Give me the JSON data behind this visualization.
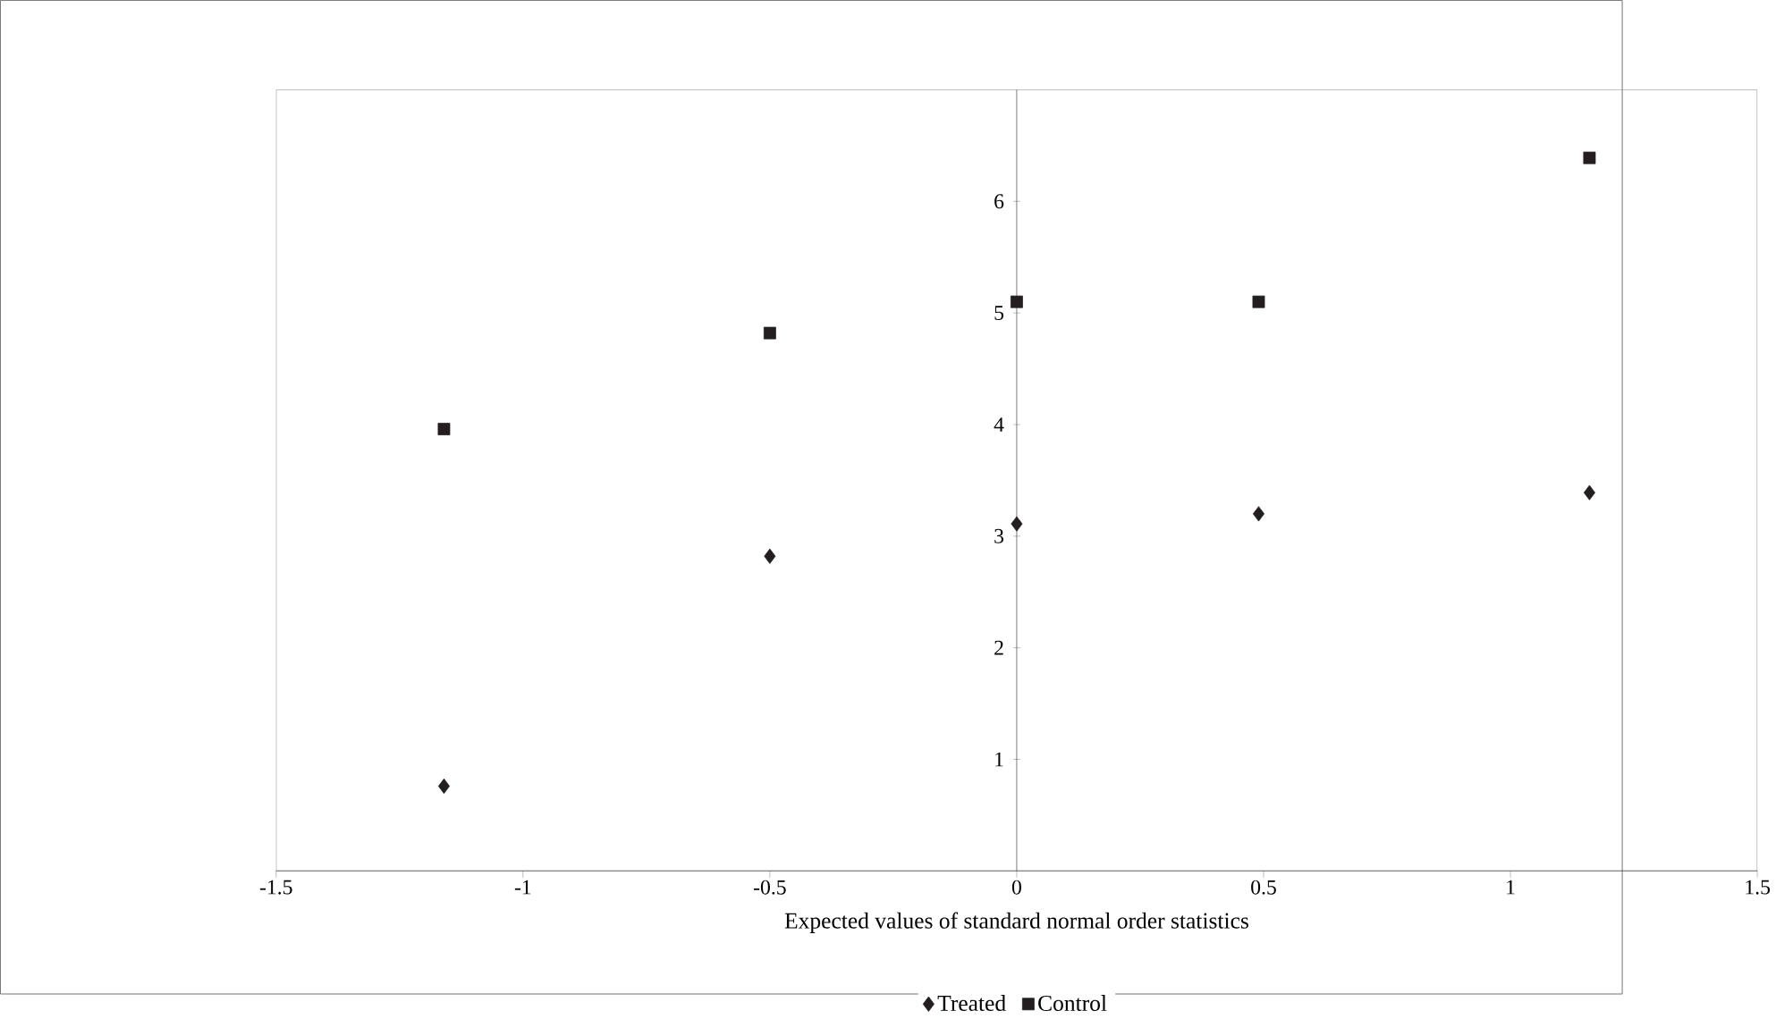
{
  "chart_data": {
    "type": "scatter",
    "xlabel": "Expected values of standard normal order statistics",
    "series": [
      {
        "name": "Treated",
        "color": "#231f20",
        "marker": "diamond",
        "x": [
          -1.16,
          -0.5,
          0,
          0.49,
          1.16
        ],
        "values": [
          0.76,
          2.82,
          3.11,
          3.2,
          3.39
        ]
      },
      {
        "name": "Control",
        "color": "#231f20",
        "marker": "square",
        "x": [
          -1.16,
          -0.5,
          0,
          0.49,
          1.16
        ],
        "values": [
          3.96,
          4.82,
          5.1,
          5.1,
          6.39
        ]
      }
    ],
    "xlim": [
      -1.5,
      1.5
    ],
    "ylim": [
      0,
      7
    ],
    "xticks": [
      -1.5,
      -1,
      -0.5,
      0,
      0.5,
      1,
      1.5
    ],
    "yticks": [
      1,
      2,
      3,
      4,
      5,
      6
    ],
    "grid": false,
    "legend": "bottom"
  }
}
